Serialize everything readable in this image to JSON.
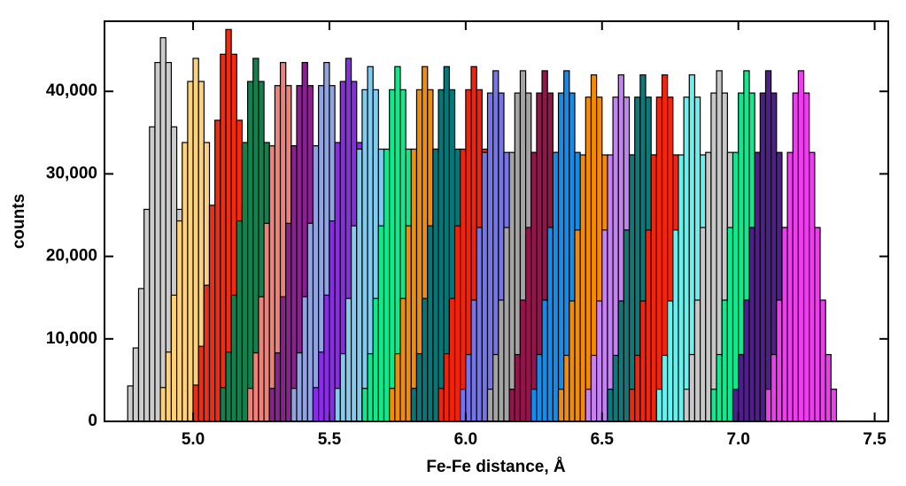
{
  "chart_data": {
    "type": "histogram",
    "x_label": "Fe-Fe distance, Å",
    "y_label": "counts",
    "xlim": [
      4.675,
      7.55
    ],
    "ylim": [
      0,
      48500
    ],
    "xticks": [
      {
        "value": 5,
        "label": "5.0"
      },
      5.5,
      {
        "value": 6,
        "label": "6.0"
      },
      6.5,
      {
        "value": 7,
        "label": "7.0"
      },
      7.5
    ],
    "yticks": [
      0,
      {
        "value": 10000,
        "label": "10,000"
      },
      {
        "value": 20000,
        "label": "20,000"
      },
      {
        "value": 30000,
        "label": "30,000"
      },
      {
        "value": 40000,
        "label": "40,000"
      }
    ],
    "series": [
      {
        "color": "#cccccc",
        "bins": [
          4.76,
          4.78,
          4.8,
          4.82,
          4.84,
          4.86,
          4.88,
          4.9,
          4.92,
          4.94,
          4.96,
          4.98,
          5.0,
          5.02
        ],
        "values": [
          4300,
          8900,
          16100,
          25700,
          35700,
          43500,
          46500,
          43500,
          35700,
          25700,
          16100,
          8900,
          4300
        ]
      },
      {
        "color": "#ffd27a",
        "bins": [
          4.88,
          4.9,
          4.92,
          4.94,
          4.96,
          4.98,
          5.0,
          5.02,
          5.04,
          5.06,
          5.08,
          5.1,
          5.12,
          5.14
        ],
        "values": [
          4100,
          8400,
          15300,
          24300,
          33800,
          41200,
          44000,
          41200,
          33800,
          24300,
          15300,
          8400,
          4100
        ]
      },
      {
        "color": "#f52a0f",
        "bins": [
          5.0,
          5.02,
          5.04,
          5.06,
          5.08,
          5.1,
          5.12,
          5.14,
          5.16,
          5.18,
          5.2,
          5.22,
          5.24,
          5.26
        ],
        "values": [
          4400,
          9100,
          16500,
          26200,
          36500,
          44500,
          47500,
          44500,
          36500,
          26200,
          16500,
          9100,
          4400
        ]
      },
      {
        "color": "#15804e",
        "bins": [
          5.1,
          5.12,
          5.14,
          5.16,
          5.18,
          5.2,
          5.22,
          5.24,
          5.26,
          5.28,
          5.3,
          5.32,
          5.34,
          5.36
        ],
        "values": [
          4100,
          8400,
          15300,
          24300,
          33800,
          41200,
          44000,
          41200,
          33800,
          24300,
          15300,
          8400,
          4100
        ]
      },
      {
        "color": "#f08078",
        "bins": [
          5.2,
          5.22,
          5.24,
          5.26,
          5.28,
          5.3,
          5.32,
          5.34,
          5.36,
          5.38,
          5.4,
          5.42,
          5.44,
          5.46
        ],
        "values": [
          4000,
          8300,
          15100,
          24000,
          33400,
          40700,
          43500,
          40700,
          33400,
          24000,
          15100,
          8300,
          4000
        ]
      },
      {
        "color": "#8b2190",
        "bins": [
          5.28,
          5.3,
          5.32,
          5.34,
          5.36,
          5.38,
          5.4,
          5.42,
          5.44,
          5.46,
          5.48,
          5.5,
          5.52,
          5.54
        ],
        "values": [
          4000,
          8300,
          15100,
          24000,
          33400,
          40700,
          43500,
          40700,
          33400,
          24000,
          15100,
          8300,
          4000
        ]
      },
      {
        "color": "#90a4e0",
        "bins": [
          5.36,
          5.38,
          5.4,
          5.42,
          5.44,
          5.46,
          5.48,
          5.5,
          5.52,
          5.54,
          5.56,
          5.58,
          5.6,
          5.62
        ],
        "values": [
          4000,
          8300,
          15100,
          24000,
          33400,
          40700,
          43500,
          40700,
          33400,
          24000,
          15100,
          8300,
          4000
        ]
      },
      {
        "color": "#8a2be8",
        "bins": [
          5.44,
          5.46,
          5.48,
          5.5,
          5.52,
          5.54,
          5.56,
          5.58,
          5.6,
          5.62,
          5.64,
          5.66,
          5.68,
          5.7
        ],
        "values": [
          4100,
          8400,
          15300,
          24300,
          33800,
          41200,
          44000,
          41200,
          33800,
          24300,
          15300,
          8400,
          4100
        ]
      },
      {
        "color": "#80ccf0",
        "bins": [
          5.52,
          5.54,
          5.56,
          5.58,
          5.6,
          5.62,
          5.64,
          5.66,
          5.68,
          5.7,
          5.72,
          5.74,
          5.76,
          5.78
        ],
        "values": [
          4000,
          8200,
          14900,
          23700,
          33000,
          40200,
          43000,
          40200,
          33000,
          23700,
          14900,
          8200,
          4000
        ]
      },
      {
        "color": "#10e88c",
        "bins": [
          5.62,
          5.64,
          5.66,
          5.68,
          5.7,
          5.72,
          5.74,
          5.76,
          5.78,
          5.8,
          5.82,
          5.84,
          5.86,
          5.88
        ],
        "values": [
          4000,
          8200,
          14900,
          23700,
          33000,
          40200,
          43000,
          40200,
          33000,
          23700,
          14900,
          8200,
          4000
        ]
      },
      {
        "color": "#f08c05",
        "bins": [
          5.72,
          5.74,
          5.76,
          5.78,
          5.8,
          5.82,
          5.84,
          5.86,
          5.88,
          5.9,
          5.92,
          5.94,
          5.96,
          5.98
        ],
        "values": [
          4000,
          8200,
          14900,
          23700,
          33000,
          40200,
          43000,
          40200,
          33000,
          23700,
          14900,
          8200,
          4000
        ]
      },
      {
        "color": "#047878",
        "bins": [
          5.8,
          5.82,
          5.84,
          5.86,
          5.88,
          5.9,
          5.92,
          5.94,
          5.96,
          5.98,
          6.0,
          6.02,
          6.04,
          6.06
        ],
        "values": [
          4000,
          8200,
          14900,
          23700,
          33000,
          40200,
          43000,
          40200,
          33000,
          23700,
          14900,
          8200,
          4000
        ]
      },
      {
        "color": "#f2230c",
        "bins": [
          5.9,
          5.92,
          5.94,
          5.96,
          5.98,
          6.0,
          6.02,
          6.04,
          6.06,
          6.08,
          6.1,
          6.12,
          6.14,
          6.16
        ],
        "values": [
          4000,
          8200,
          14900,
          23700,
          33000,
          40200,
          43000,
          40200,
          33000,
          23700,
          14900,
          8200,
          4000
        ]
      },
      {
        "color": "#7474ee",
        "bins": [
          5.98,
          6.0,
          6.02,
          6.04,
          6.06,
          6.08,
          6.1,
          6.12,
          6.14,
          6.16,
          6.18,
          6.2,
          6.22,
          6.24
        ],
        "values": [
          3900,
          8100,
          14700,
          23500,
          32600,
          39800,
          42500,
          39800,
          32600,
          23500,
          14700,
          8100,
          3900
        ]
      },
      {
        "color": "#a4a4a4",
        "bins": [
          6.08,
          6.1,
          6.12,
          6.14,
          6.16,
          6.18,
          6.2,
          6.22,
          6.24,
          6.26,
          6.28,
          6.3,
          6.32,
          6.34
        ],
        "values": [
          3900,
          8100,
          14700,
          23500,
          32600,
          39800,
          42500,
          39800,
          32600,
          23500,
          14700,
          8100,
          3900
        ]
      },
      {
        "color": "#92164a",
        "bins": [
          6.16,
          6.18,
          6.2,
          6.22,
          6.24,
          6.26,
          6.28,
          6.3,
          6.32,
          6.34,
          6.36,
          6.38,
          6.4,
          6.42
        ],
        "values": [
          3900,
          8100,
          14700,
          23500,
          32600,
          39800,
          42500,
          39800,
          32600,
          23500,
          14700,
          8100,
          3900
        ]
      },
      {
        "color": "#108ef0",
        "bins": [
          6.24,
          6.26,
          6.28,
          6.3,
          6.32,
          6.34,
          6.36,
          6.38,
          6.4,
          6.42,
          6.44,
          6.46,
          6.48,
          6.5
        ],
        "values": [
          3900,
          8100,
          14700,
          23500,
          32600,
          39800,
          42500,
          39800,
          32600,
          23500,
          14700,
          8100,
          3900
        ]
      },
      {
        "color": "#f28c08",
        "bins": [
          6.34,
          6.36,
          6.38,
          6.4,
          6.42,
          6.44,
          6.46,
          6.48,
          6.5,
          6.52,
          6.54,
          6.56,
          6.58,
          6.6
        ],
        "values": [
          3900,
          8000,
          14600,
          23200,
          32300,
          39300,
          42000,
          39300,
          32300,
          23200,
          14600,
          8000,
          3900
        ]
      },
      {
        "color": "#c682f4",
        "bins": [
          6.44,
          6.46,
          6.48,
          6.5,
          6.52,
          6.54,
          6.56,
          6.58,
          6.6,
          6.62,
          6.64,
          6.66,
          6.68,
          6.7
        ],
        "values": [
          3900,
          8000,
          14600,
          23200,
          32300,
          39300,
          42000,
          39300,
          32300,
          23200,
          14600,
          8000,
          3900
        ]
      },
      {
        "color": "#0a7a7a",
        "bins": [
          6.52,
          6.54,
          6.56,
          6.58,
          6.6,
          6.62,
          6.64,
          6.66,
          6.68,
          6.7,
          6.72,
          6.74,
          6.76,
          6.78
        ],
        "values": [
          3900,
          8000,
          14600,
          23200,
          32300,
          39300,
          42000,
          39300,
          32300,
          23200,
          14600,
          8000,
          3900
        ]
      },
      {
        "color": "#f4250e",
        "bins": [
          6.6,
          6.62,
          6.64,
          6.66,
          6.68,
          6.7,
          6.72,
          6.74,
          6.76,
          6.78,
          6.8,
          6.82,
          6.84,
          6.86
        ],
        "values": [
          3900,
          8000,
          14600,
          23200,
          32300,
          39300,
          42000,
          39300,
          32300,
          23200,
          14600,
          8000,
          3900
        ]
      },
      {
        "color": "#66f2ee",
        "bins": [
          6.7,
          6.72,
          6.74,
          6.76,
          6.78,
          6.8,
          6.82,
          6.84,
          6.86,
          6.88,
          6.9,
          6.92,
          6.94,
          6.96
        ],
        "values": [
          3900,
          8000,
          14600,
          23200,
          32300,
          39300,
          42000,
          39300,
          32300,
          23200,
          14600,
          8000,
          3900
        ]
      },
      {
        "color": "#c8c8c8",
        "bins": [
          6.8,
          6.82,
          6.84,
          6.86,
          6.88,
          6.9,
          6.92,
          6.94,
          6.96,
          6.98,
          7.0,
          7.02,
          7.04,
          7.06
        ],
        "values": [
          3900,
          8100,
          14700,
          23500,
          32600,
          39800,
          42500,
          39800,
          32600,
          23500,
          14700,
          8100,
          3900
        ]
      },
      {
        "color": "#12e88e",
        "bins": [
          6.9,
          6.92,
          6.94,
          6.96,
          6.98,
          7.0,
          7.02,
          7.04,
          7.06,
          7.08,
          7.1,
          7.12,
          7.14,
          7.16
        ],
        "values": [
          3900,
          8100,
          14700,
          23500,
          32600,
          39800,
          42500,
          39800,
          32600,
          23500,
          14700,
          8100,
          3900
        ]
      },
      {
        "color": "#4f1e8c",
        "bins": [
          6.98,
          7.0,
          7.02,
          7.04,
          7.06,
          7.08,
          7.1,
          7.12,
          7.14,
          7.16,
          7.18,
          7.2,
          7.22,
          7.24
        ],
        "values": [
          3900,
          8100,
          14700,
          23500,
          32600,
          39800,
          42500,
          39800,
          32600,
          23500,
          14700,
          8100,
          3900
        ]
      },
      {
        "color": "#f03cf0",
        "bins": [
          7.1,
          7.12,
          7.14,
          7.16,
          7.18,
          7.2,
          7.22,
          7.24,
          7.26,
          7.28,
          7.3,
          7.32,
          7.34,
          7.36
        ],
        "values": [
          3900,
          8100,
          14700,
          23500,
          32600,
          39800,
          42500,
          39800,
          32600,
          23500,
          14700,
          8100,
          3900
        ]
      }
    ]
  }
}
